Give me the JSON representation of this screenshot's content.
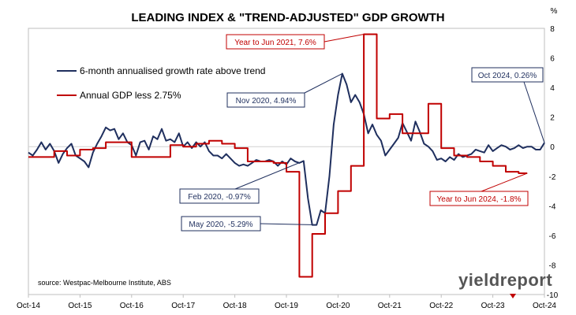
{
  "chart_data": {
    "type": "line",
    "title": "LEADING INDEX & \"TREND-ADJUSTED\" GDP GROWTH",
    "y_unit": "%",
    "ylim": [
      -10,
      8
    ],
    "yticks": [
      8,
      6,
      4,
      2,
      0,
      -2,
      -4,
      -6,
      -8,
      -10
    ],
    "xlim": [
      "2014-10",
      "2024-10"
    ],
    "xticks": [
      "Oct-14",
      "Oct-15",
      "Oct-16",
      "Oct-17",
      "Oct-18",
      "Oct-19",
      "Oct-20",
      "Oct-21",
      "Oct-22",
      "Oct-23",
      "Oct-24"
    ],
    "grid": "none",
    "legend_position": "top-left inside",
    "source": "source: Westpac-Melbourne Institute, ABS",
    "logo": "yieldreport",
    "series": [
      {
        "name": "6-month annualised growth rate above trend",
        "color": "#1f2f5e",
        "points": [
          [
            "2014-10",
            -0.4
          ],
          [
            "2014-11",
            -0.6
          ],
          [
            "2014-12",
            -0.2
          ],
          [
            "2015-01",
            0.3
          ],
          [
            "2015-02",
            -0.2
          ],
          [
            "2015-03",
            0.2
          ],
          [
            "2015-04",
            -0.3
          ],
          [
            "2015-05",
            -1.1
          ],
          [
            "2015-06",
            -0.5
          ],
          [
            "2015-07",
            -0.1
          ],
          [
            "2015-08",
            0.2
          ],
          [
            "2015-09",
            -0.6
          ],
          [
            "2015-10",
            -0.8
          ],
          [
            "2015-11",
            -1.0
          ],
          [
            "2015-12",
            -1.4
          ],
          [
            "2016-01",
            -0.4
          ],
          [
            "2016-02",
            0.2
          ],
          [
            "2016-03",
            0.7
          ],
          [
            "2016-04",
            1.3
          ],
          [
            "2016-05",
            1.1
          ],
          [
            "2016-06",
            1.2
          ],
          [
            "2016-07",
            0.5
          ],
          [
            "2016-08",
            0.9
          ],
          [
            "2016-09",
            0.3
          ],
          [
            "2016-10",
            0.1
          ],
          [
            "2016-11",
            -0.6
          ],
          [
            "2016-12",
            0.3
          ],
          [
            "2017-01",
            0.4
          ],
          [
            "2017-02",
            -0.2
          ],
          [
            "2017-03",
            0.7
          ],
          [
            "2017-04",
            0.5
          ],
          [
            "2017-05",
            1.2
          ],
          [
            "2017-06",
            0.4
          ],
          [
            "2017-07",
            0.5
          ],
          [
            "2017-08",
            0.3
          ],
          [
            "2017-09",
            0.9
          ],
          [
            "2017-10",
            0.0
          ],
          [
            "2017-11",
            0.3
          ],
          [
            "2017-12",
            -0.1
          ],
          [
            "2018-01",
            0.3
          ],
          [
            "2018-02",
            0.0
          ],
          [
            "2018-03",
            0.3
          ],
          [
            "2018-04",
            -0.3
          ],
          [
            "2018-05",
            -0.6
          ],
          [
            "2018-06",
            -0.6
          ],
          [
            "2018-07",
            -0.8
          ],
          [
            "2018-08",
            -0.5
          ],
          [
            "2018-09",
            -0.8
          ],
          [
            "2018-10",
            -1.1
          ],
          [
            "2018-11",
            -1.3
          ],
          [
            "2018-12",
            -1.2
          ],
          [
            "2019-01",
            -1.3
          ],
          [
            "2019-02",
            -1.1
          ],
          [
            "2019-03",
            -0.9
          ],
          [
            "2019-04",
            -1.0
          ],
          [
            "2019-05",
            -1.0
          ],
          [
            "2019-06",
            -0.9
          ],
          [
            "2019-07",
            -1.0
          ],
          [
            "2019-08",
            -1.3
          ],
          [
            "2019-09",
            -1.0
          ],
          [
            "2019-10",
            -1.2
          ],
          [
            "2019-11",
            -0.8
          ],
          [
            "2019-12",
            -1.0
          ],
          [
            "2020-01",
            -1.1
          ],
          [
            "2020-02",
            -0.97
          ],
          [
            "2020-03",
            -3.5
          ],
          [
            "2020-04",
            -5.29
          ],
          [
            "2020-05",
            -5.29
          ],
          [
            "2020-06",
            -4.3
          ],
          [
            "2020-07",
            -4.5
          ],
          [
            "2020-08",
            -2.0
          ],
          [
            "2020-09",
            1.5
          ],
          [
            "2020-10",
            3.5
          ],
          [
            "2020-11",
            4.94
          ],
          [
            "2020-12",
            4.2
          ],
          [
            "2021-01",
            3.0
          ],
          [
            "2021-02",
            3.5
          ],
          [
            "2021-03",
            3.0
          ],
          [
            "2021-04",
            2.2
          ],
          [
            "2021-05",
            0.9
          ],
          [
            "2021-06",
            1.5
          ],
          [
            "2021-07",
            0.8
          ],
          [
            "2021-08",
            0.4
          ],
          [
            "2021-09",
            -0.6
          ],
          [
            "2021-10",
            -0.2
          ],
          [
            "2021-11",
            0.2
          ],
          [
            "2021-12",
            0.6
          ],
          [
            "2022-01",
            1.6
          ],
          [
            "2022-02",
            1.0
          ],
          [
            "2022-03",
            0.4
          ],
          [
            "2022-04",
            1.7
          ],
          [
            "2022-05",
            1.0
          ],
          [
            "2022-06",
            0.2
          ],
          [
            "2022-07",
            0.0
          ],
          [
            "2022-08",
            -0.3
          ],
          [
            "2022-09",
            -0.9
          ],
          [
            "2022-10",
            -0.8
          ],
          [
            "2022-11",
            -1.0
          ],
          [
            "2022-12",
            -0.7
          ],
          [
            "2023-01",
            -0.9
          ],
          [
            "2023-02",
            -0.5
          ],
          [
            "2023-03",
            -0.7
          ],
          [
            "2023-04",
            -0.6
          ],
          [
            "2023-05",
            -0.5
          ],
          [
            "2023-06",
            -0.2
          ],
          [
            "2023-07",
            -0.3
          ],
          [
            "2023-08",
            -0.4
          ],
          [
            "2023-09",
            0.1
          ],
          [
            "2023-10",
            -0.3
          ],
          [
            "2023-11",
            -0.1
          ],
          [
            "2023-12",
            0.1
          ],
          [
            "2024-01",
            0.0
          ],
          [
            "2024-02",
            -0.2
          ],
          [
            "2024-03",
            -0.1
          ],
          [
            "2024-04",
            0.1
          ],
          [
            "2024-05",
            -0.1
          ],
          [
            "2024-06",
            0.0
          ],
          [
            "2024-07",
            0.0
          ],
          [
            "2024-08",
            -0.2
          ],
          [
            "2024-09",
            -0.2
          ],
          [
            "2024-10",
            0.26
          ]
        ]
      },
      {
        "name": "Annual GDP less 2.75%",
        "color": "#c00000",
        "points": [
          [
            "2014-10",
            -0.7
          ],
          [
            "2015-01",
            -0.7
          ],
          [
            "2015-04",
            -0.3
          ],
          [
            "2015-07",
            -0.6
          ],
          [
            "2015-10",
            -0.2
          ],
          [
            "2016-01",
            -0.1
          ],
          [
            "2016-04",
            0.3
          ],
          [
            "2016-07",
            0.3
          ],
          [
            "2016-10",
            -0.7
          ],
          [
            "2017-01",
            -0.7
          ],
          [
            "2017-04",
            -0.7
          ],
          [
            "2017-07",
            0.1
          ],
          [
            "2017-10",
            0.0
          ],
          [
            "2018-01",
            0.2
          ],
          [
            "2018-04",
            0.4
          ],
          [
            "2018-07",
            0.2
          ],
          [
            "2018-10",
            -0.1
          ],
          [
            "2019-01",
            -1.0
          ],
          [
            "2019-04",
            -1.0
          ],
          [
            "2019-07",
            -1.1
          ],
          [
            "2019-10",
            -1.7
          ],
          [
            "2020-01",
            -8.8
          ],
          [
            "2020-04",
            -5.9
          ],
          [
            "2020-07",
            -4.5
          ],
          [
            "2020-10",
            -3.0
          ],
          [
            "2021-01",
            -1.3
          ],
          [
            "2021-04",
            7.6
          ],
          [
            "2021-07",
            1.9
          ],
          [
            "2021-10",
            2.2
          ],
          [
            "2022-01",
            0.9
          ],
          [
            "2022-04",
            0.9
          ],
          [
            "2022-07",
            2.9
          ],
          [
            "2022-10",
            -0.1
          ],
          [
            "2023-01",
            -0.6
          ],
          [
            "2023-04",
            -0.7
          ],
          [
            "2023-07",
            -1.0
          ],
          [
            "2023-10",
            -1.3
          ],
          [
            "2024-01",
            -1.7
          ],
          [
            "2024-04",
            -1.8
          ],
          [
            "2024-06",
            -1.8
          ]
        ]
      }
    ],
    "annotations": [
      {
        "label": "Year to Jun 2021, 7.6%",
        "series": 1,
        "point": [
          "2021-04",
          7.6
        ],
        "color": "#c00000"
      },
      {
        "label": "Nov 2020, 4.94%",
        "series": 0,
        "point": [
          "2020-11",
          4.94
        ],
        "color": "#1f2f5e"
      },
      {
        "label": "Oct 2024, 0.26%",
        "series": 0,
        "point": [
          "2024-10",
          0.26
        ],
        "color": "#1f2f5e"
      },
      {
        "label": "Feb 2020, -0.97%",
        "series": 0,
        "point": [
          "2020-02",
          -0.97
        ],
        "color": "#1f2f5e"
      },
      {
        "label": "May 2020, -5.29%",
        "series": 0,
        "point": [
          "2020-05",
          -5.29
        ],
        "color": "#1f2f5e"
      },
      {
        "label": "Year to Jun 2024, -1.8%",
        "series": 1,
        "point": [
          "2024-06",
          -1.8
        ],
        "color": "#c00000"
      }
    ]
  }
}
